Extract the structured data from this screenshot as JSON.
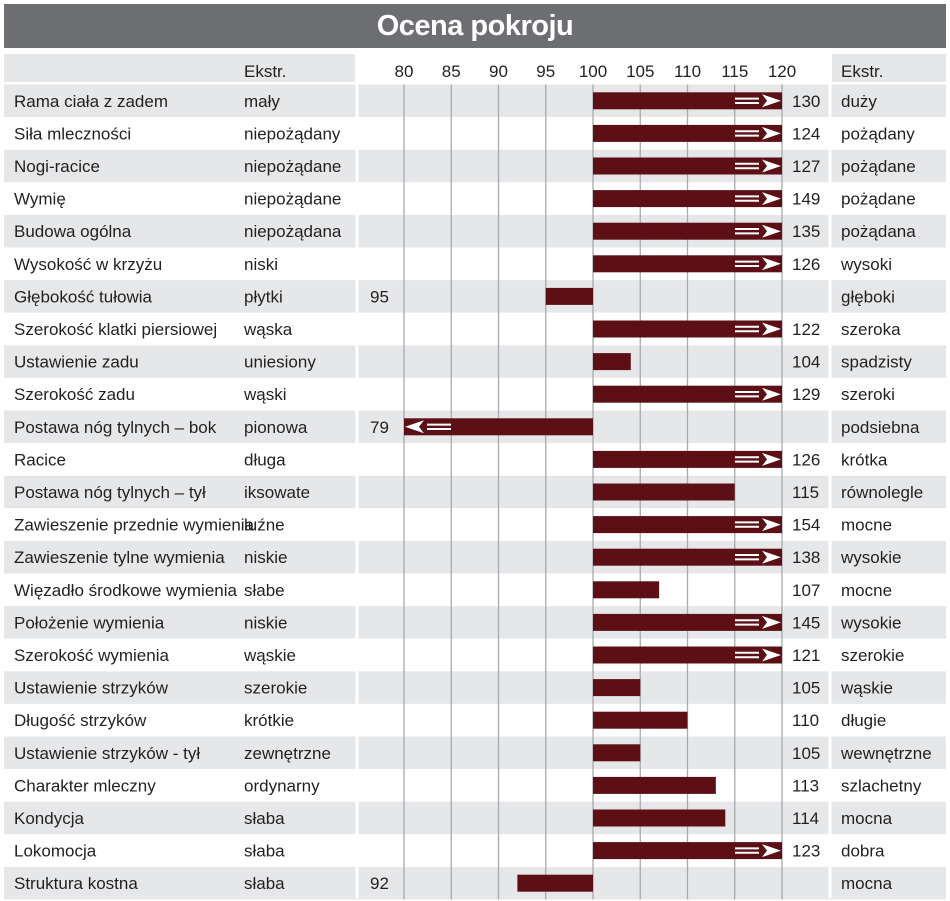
{
  "title": "Ocena pokroju",
  "header": {
    "left_extreme": "Ekstr.",
    "right_extreme": "Ekstr."
  },
  "colors": {
    "bar": "#5c1016",
    "header_bg": "#6d6e71",
    "row_shaded": "#e6e7e8",
    "gridline": "#a7a9ac"
  },
  "chart_data": {
    "type": "bar",
    "orientation": "horizontal",
    "title": "Ocena pokroju",
    "xlim": [
      80,
      120
    ],
    "xticks": [
      "80",
      "85",
      "90",
      "95",
      "100",
      "105",
      "110",
      "115",
      "120"
    ],
    "baseline": 100,
    "grid": true,
    "rows": [
      {
        "trait": "Rama ciała z zadem",
        "low": "mały",
        "high": "duży",
        "value": 130,
        "label": "130",
        "label_side": "right",
        "overflow": true
      },
      {
        "trait": "Siła mleczności",
        "low": "niepożądany",
        "high": "pożądany",
        "value": 124,
        "label": "124",
        "label_side": "right",
        "overflow": true
      },
      {
        "trait": "Nogi-racice",
        "low": "niepożądane",
        "high": "pożądane",
        "value": 127,
        "label": "127",
        "label_side": "right",
        "overflow": true
      },
      {
        "trait": "Wymię",
        "low": "niepożądane",
        "high": "pożądane",
        "value": 149,
        "label": "149",
        "label_side": "right",
        "overflow": true
      },
      {
        "trait": "Budowa ogólna",
        "low": "niepożądana",
        "high": "pożądana",
        "value": 135,
        "label": "135",
        "label_side": "right",
        "overflow": true
      },
      {
        "trait": "Wysokość w krzyżu",
        "low": "niski",
        "high": "wysoki",
        "value": 126,
        "label": "126",
        "label_side": "right",
        "overflow": true
      },
      {
        "trait": "Głębokość tułowia",
        "low": "płytki",
        "high": "głęboki",
        "value": 95,
        "label": "95",
        "label_side": "left",
        "overflow": false
      },
      {
        "trait": "Szerokość klatki piersiowej",
        "low": "wąska",
        "high": "szeroka",
        "value": 122,
        "label": "122",
        "label_side": "right",
        "overflow": true
      },
      {
        "trait": "Ustawienie zadu",
        "low": "uniesiony",
        "high": "spadzisty",
        "value": 104,
        "label": "104",
        "label_side": "right",
        "overflow": false
      },
      {
        "trait": "Szerokość zadu",
        "low": "wąski",
        "high": "szeroki",
        "value": 129,
        "label": "129",
        "label_side": "right",
        "overflow": true
      },
      {
        "trait": "Postawa nóg tylnych –  bok",
        "low": "pionowa",
        "high": "podsiebna",
        "value": 79,
        "label": "79",
        "label_side": "left",
        "overflow": true
      },
      {
        "trait": "Racice",
        "low": "długa",
        "high": "krótka",
        "value": 126,
        "label": "126",
        "label_side": "right",
        "overflow": true
      },
      {
        "trait": "Postawa nóg tylnych –  tył",
        "low": "iksowate",
        "high": "równolegle",
        "value": 115,
        "label": "115",
        "label_side": "right",
        "overflow": false
      },
      {
        "trait": "Zawieszenie przednie wymienia",
        "low": "luźne",
        "high": "mocne",
        "value": 154,
        "label": "154",
        "label_side": "right",
        "overflow": true
      },
      {
        "trait": "Zawieszenie tylne wymienia",
        "low": "niskie",
        "high": "wysokie",
        "value": 138,
        "label": "138",
        "label_side": "right",
        "overflow": true
      },
      {
        "trait": "Więzadło środkowe wymienia",
        "low": "słabe",
        "high": "mocne",
        "value": 107,
        "label": "107",
        "label_side": "right",
        "overflow": false
      },
      {
        "trait": "Położenie wymienia",
        "low": "niskie",
        "high": "wysokie",
        "value": 145,
        "label": "145",
        "label_side": "right",
        "overflow": true
      },
      {
        "trait": "Szerokość wymienia",
        "low": "wąskie",
        "high": "szerokie",
        "value": 121,
        "label": "121",
        "label_side": "right",
        "overflow": true
      },
      {
        "trait": "Ustawienie strzyków",
        "low": "szerokie",
        "high": "wąskie",
        "value": 105,
        "label": "105",
        "label_side": "right",
        "overflow": false
      },
      {
        "trait": "Długość strzyków",
        "low": "krótkie",
        "high": "długie",
        "value": 110,
        "label": "110",
        "label_side": "right",
        "overflow": false
      },
      {
        "trait": "Ustawienie strzyków - tył",
        "low": "zewnętrzne",
        "high": "wewnętrzne",
        "value": 105,
        "label": "105",
        "label_side": "right",
        "overflow": false
      },
      {
        "trait": "Charakter mleczny",
        "low": "ordynarny",
        "high": "szlachetny",
        "value": 113,
        "label": "113",
        "label_side": "right",
        "overflow": false
      },
      {
        "trait": "Kondycja",
        "low": "słaba",
        "high": "mocna",
        "value": 114,
        "label": "114",
        "label_side": "right",
        "overflow": false
      },
      {
        "trait": "Lokomocja",
        "low": "słaba",
        "high": "dobra",
        "value": 123,
        "label": "123",
        "label_side": "right",
        "overflow": true
      },
      {
        "trait": "Struktura kostna",
        "low": "słaba",
        "high": "mocna",
        "value": 92,
        "label": "92",
        "label_side": "left",
        "overflow": false
      }
    ]
  }
}
